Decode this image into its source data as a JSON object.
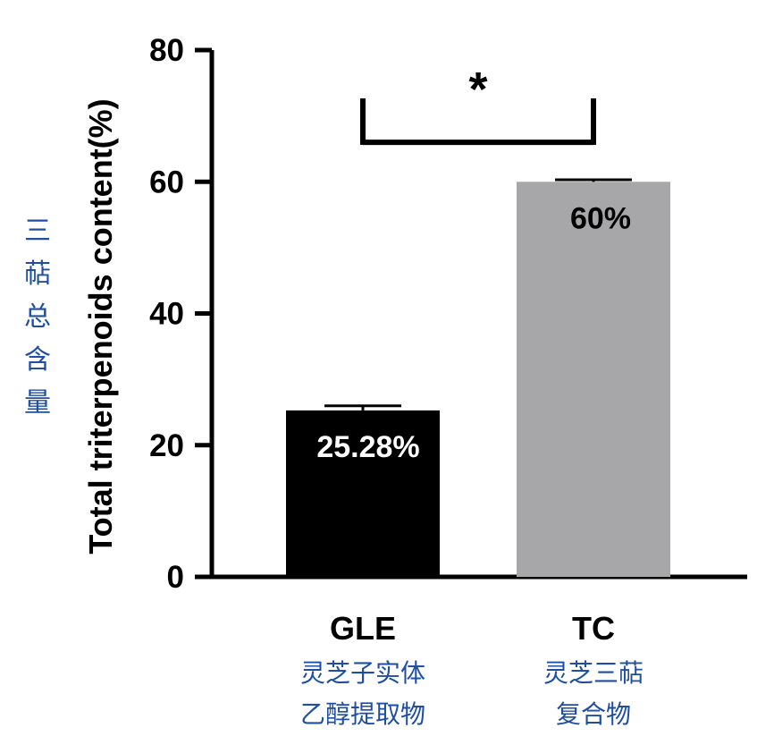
{
  "chart_data": {
    "type": "bar",
    "categories": [
      "GLE",
      "TC"
    ],
    "category_sublabels": [
      [
        "灵芝子实体",
        "乙醇提取物"
      ],
      [
        "灵芝三萜",
        "复合物"
      ]
    ],
    "values": [
      25.28,
      60
    ],
    "errors": [
      0.7,
      0.3
    ],
    "data_labels": [
      "25.28%",
      "60%"
    ],
    "bar_colors": [
      "#000000",
      "#a7a7a9"
    ],
    "data_label_colors": [
      "#ffffff",
      "#000000"
    ],
    "ylabel": "Total triterpenoids content(%)",
    "ylabel_zh": "三萜总含量",
    "ylim": [
      0,
      80
    ],
    "yticks": [
      0,
      20,
      40,
      60,
      80
    ],
    "significance": {
      "label": "*",
      "between": [
        0,
        1
      ],
      "level": 66
    },
    "grid": false
  }
}
